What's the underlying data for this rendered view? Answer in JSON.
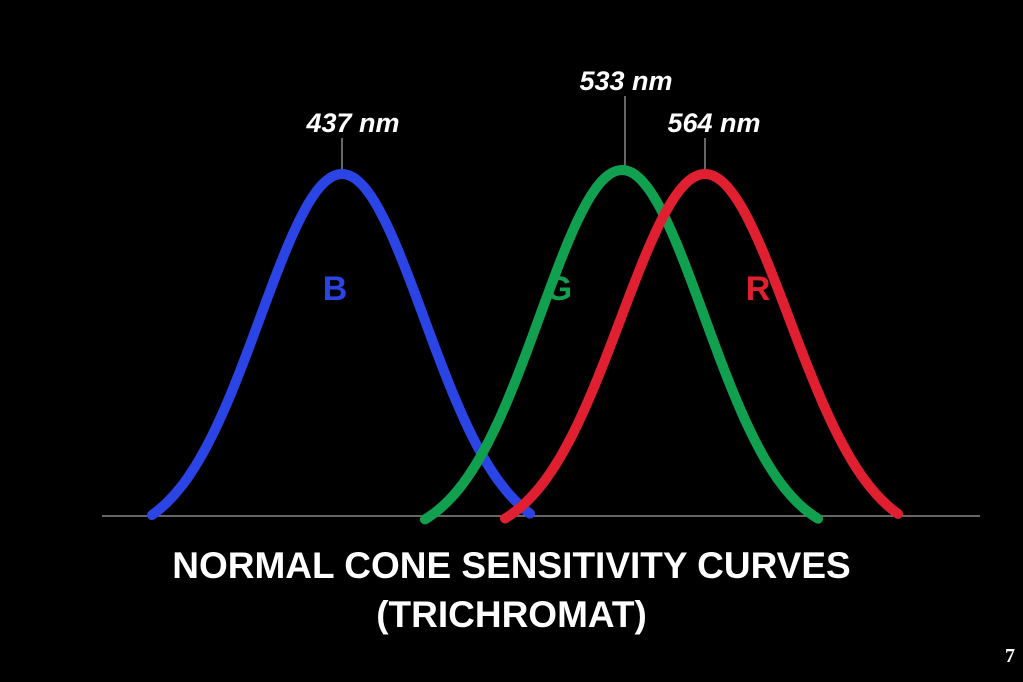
{
  "diagram": {
    "curves": [
      {
        "id": "blue",
        "letter": "B",
        "peak_label": "437 nm",
        "color": "#2b44e6"
      },
      {
        "id": "green",
        "letter": "G",
        "peak_label": "533 nm",
        "color": "#10a050"
      },
      {
        "id": "red",
        "letter": "R",
        "peak_label": "564 nm",
        "color": "#e02030"
      }
    ],
    "baseline_color": "#888888",
    "text_color": "#ffffff"
  },
  "title": {
    "line1": "NORMAL CONE SENSITIVITY CURVES",
    "line2": "(TRICHROMAT)"
  },
  "page_number": "7"
}
